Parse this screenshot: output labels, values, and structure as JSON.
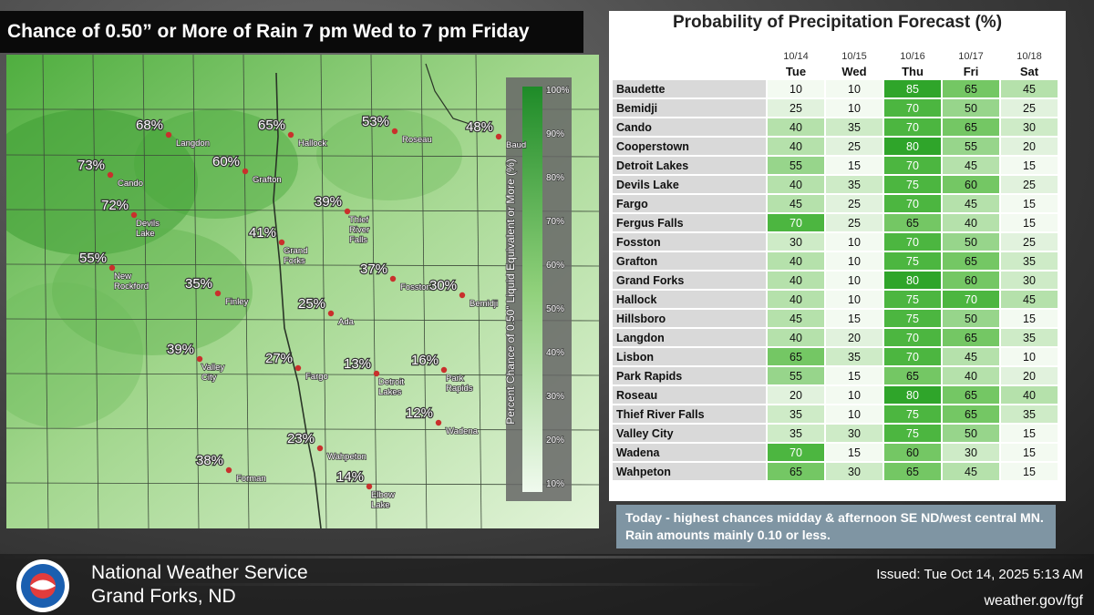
{
  "title": "Chance of 0.50” or More of Rain 7 pm Wed to 7 pm Friday",
  "legend": {
    "axis_label": "Percent Chance of 0.50” Liquid Equivalent or More (%)",
    "ticks": [
      "100%",
      "90%",
      "80%",
      "70%",
      "60%",
      "50%",
      "40%",
      "30%",
      "20%",
      "10%"
    ]
  },
  "map_points": [
    {
      "pct": "68%",
      "city": "Langdon",
      "value": 68
    },
    {
      "pct": "65%",
      "city": "Hallock",
      "value": 65
    },
    {
      "pct": "53%",
      "city": "Roseau",
      "value": 53
    },
    {
      "pct": "48%",
      "city": "Baud",
      "value": 48
    },
    {
      "pct": "73%",
      "city": "Cando",
      "value": 73
    },
    {
      "pct": "60%",
      "city": "Grafton",
      "value": 60
    },
    {
      "pct": "72%",
      "city": "Devils\nLake",
      "value": 72
    },
    {
      "pct": "39%",
      "city": "Thief\nRiver\nFalls",
      "value": 39
    },
    {
      "pct": "41%",
      "city": "Grand\nForks",
      "value": 41
    },
    {
      "pct": "55%",
      "city": "New\nRockford",
      "value": 55
    },
    {
      "pct": "35%",
      "city": "Finley",
      "value": 35
    },
    {
      "pct": "37%",
      "city": "Fosston",
      "value": 37
    },
    {
      "pct": "30%",
      "city": "Bemidji",
      "value": 30
    },
    {
      "pct": "25%",
      "city": "Ada",
      "value": 25
    },
    {
      "pct": "39%",
      "city": "Valley\nCity",
      "value": 39
    },
    {
      "pct": "27%",
      "city": "Fargo",
      "value": 27
    },
    {
      "pct": "13%",
      "city": "Detroit\nLakes",
      "value": 13
    },
    {
      "pct": "16%",
      "city": "Park\nRapids",
      "value": 16
    },
    {
      "pct": "12%",
      "city": "Wadena",
      "value": 12
    },
    {
      "pct": "23%",
      "city": "Wahpeton",
      "value": 23
    },
    {
      "pct": "38%",
      "city": "Forman",
      "value": 38
    },
    {
      "pct": "14%",
      "city": "Elbow\nLake",
      "value": 14
    }
  ],
  "table": {
    "title": "Probability of Precipitation Forecast (%)",
    "dates": [
      "10/14",
      "10/15",
      "10/16",
      "10/17",
      "10/18"
    ],
    "days": [
      "Tue",
      "Wed",
      "Thu",
      "Fri",
      "Sat"
    ],
    "rows": [
      {
        "name": "Baudette",
        "values": [
          10,
          10,
          85,
          65,
          45
        ]
      },
      {
        "name": "Bemidji",
        "values": [
          25,
          10,
          70,
          50,
          25
        ]
      },
      {
        "name": "Cando",
        "values": [
          40,
          35,
          70,
          65,
          30
        ]
      },
      {
        "name": "Cooperstown",
        "values": [
          40,
          25,
          80,
          55,
          20
        ]
      },
      {
        "name": "Detroit Lakes",
        "values": [
          55,
          15,
          70,
          45,
          15
        ]
      },
      {
        "name": "Devils Lake",
        "values": [
          40,
          35,
          75,
          60,
          25
        ]
      },
      {
        "name": "Fargo",
        "values": [
          45,
          25,
          70,
          45,
          15
        ]
      },
      {
        "name": "Fergus Falls",
        "values": [
          70,
          25,
          65,
          40,
          15
        ]
      },
      {
        "name": "Fosston",
        "values": [
          30,
          10,
          70,
          50,
          25
        ]
      },
      {
        "name": "Grafton",
        "values": [
          40,
          10,
          75,
          65,
          35
        ]
      },
      {
        "name": "Grand Forks",
        "values": [
          40,
          10,
          80,
          60,
          30
        ]
      },
      {
        "name": "Hallock",
        "values": [
          40,
          10,
          75,
          70,
          45
        ]
      },
      {
        "name": "Hillsboro",
        "values": [
          45,
          15,
          75,
          50,
          15
        ]
      },
      {
        "name": "Langdon",
        "values": [
          40,
          20,
          70,
          65,
          35
        ]
      },
      {
        "name": "Lisbon",
        "values": [
          65,
          35,
          70,
          45,
          10
        ]
      },
      {
        "name": "Park Rapids",
        "values": [
          55,
          15,
          65,
          40,
          20
        ]
      },
      {
        "name": "Roseau",
        "values": [
          20,
          10,
          80,
          65,
          40
        ]
      },
      {
        "name": "Thief River Falls",
        "values": [
          35,
          10,
          75,
          65,
          35
        ]
      },
      {
        "name": "Valley City",
        "values": [
          35,
          30,
          75,
          50,
          15
        ]
      },
      {
        "name": "Wadena",
        "values": [
          70,
          15,
          60,
          30,
          15
        ]
      },
      {
        "name": "Wahpeton",
        "values": [
          65,
          30,
          65,
          45,
          15
        ]
      }
    ]
  },
  "note": "Today - highest chances midday & afternoon SE ND/west central MN.  Rain amounts mainly 0.10 or less.",
  "footer": {
    "office_line1": "National Weather Service",
    "office_line2": "Grand Forks, ND",
    "logo_text": "NATIONAL WEATHER SERVICE",
    "issued": "Issued: Tue Oct 14, 2025 5:13 AM",
    "website": "weather.gov/fgf"
  }
}
